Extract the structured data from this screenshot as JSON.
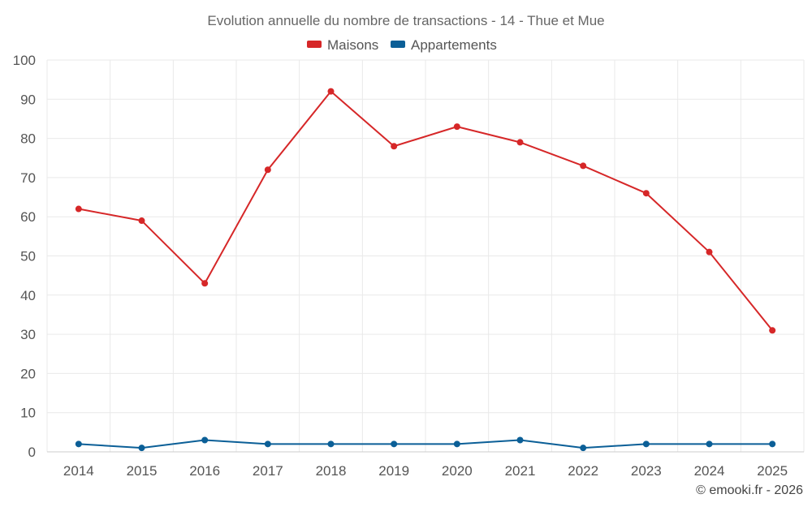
{
  "chart_data": {
    "type": "line",
    "title": "Evolution annuelle du nombre de transactions - 14 - Thue et Mue",
    "x": [
      "2014",
      "2015",
      "2016",
      "2017",
      "2018",
      "2019",
      "2020",
      "2021",
      "2022",
      "2023",
      "2024",
      "2025"
    ],
    "series": [
      {
        "name": "Maisons",
        "color": "#d62728",
        "values": [
          62,
          59,
          43,
          72,
          92,
          78,
          83,
          79,
          73,
          66,
          51,
          31
        ]
      },
      {
        "name": "Appartements",
        "color": "#0b5f97",
        "values": [
          2,
          1,
          3,
          2,
          2,
          2,
          2,
          3,
          1,
          2,
          2,
          2
        ]
      }
    ],
    "ylim": [
      0,
      100
    ],
    "yticks": [
      "0",
      "10",
      "20",
      "30",
      "40",
      "50",
      "60",
      "70",
      "80",
      "90",
      "100"
    ],
    "grid": true,
    "legend_position": "top-center",
    "xlabel": "",
    "ylabel": ""
  },
  "credit": "© emooki.fr - 2026"
}
